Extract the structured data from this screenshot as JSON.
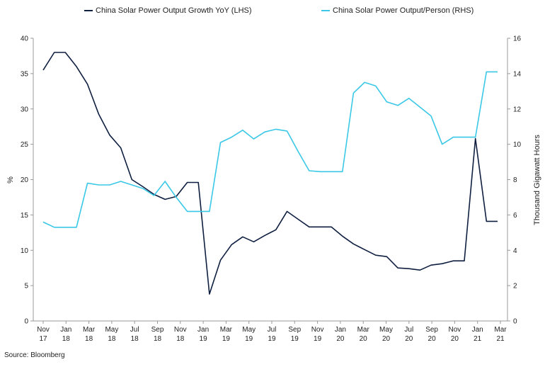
{
  "source": "Source: Bloomberg",
  "colors": {
    "lhs": "#0f1f40",
    "rhs": "#3ac8e6",
    "axis": "#999999"
  },
  "chart_data": {
    "type": "line",
    "grid": false,
    "legend_position": "top",
    "xlabel": "",
    "ylabel_left": "%",
    "ylabel_right": "Thousand Gigawatt Hours",
    "ylim_left": [
      0,
      40
    ],
    "ylim_right": [
      0,
      16
    ],
    "yticks_left": [
      "0",
      "5",
      "10",
      "15",
      "20",
      "25",
      "30",
      "35",
      "40"
    ],
    "yticks_right": [
      "0",
      "2",
      "4",
      "6",
      "8",
      "10",
      "12",
      "14",
      "16"
    ],
    "x": [
      "Nov 17",
      "Dec 17",
      "Jan 18",
      "Feb 18",
      "Mar 18",
      "Apr 18",
      "May 18",
      "Jun 18",
      "Jul 18",
      "Aug 18",
      "Sep 18",
      "Oct 18",
      "Nov 18",
      "Dec 18",
      "Jan 19",
      "Feb 19",
      "Mar 19",
      "Apr 19",
      "May 19",
      "Jun 19",
      "Jul 19",
      "Aug 19",
      "Sep 19",
      "Oct 19",
      "Nov 19",
      "Dec 19",
      "Jan 20",
      "Feb 20",
      "Mar 20",
      "Apr 20",
      "May 20",
      "Jun 20",
      "Jul 20",
      "Aug 20",
      "Sep 20",
      "Oct 20",
      "Nov 20",
      "Dec 20",
      "Jan 21",
      "Feb 21",
      "Mar 21",
      "Apr 21"
    ],
    "x_tick_labels": [
      {
        "top": "Nov",
        "bottom": "17"
      },
      {
        "top": "Jan",
        "bottom": "18"
      },
      {
        "top": "Mar",
        "bottom": "18"
      },
      {
        "top": "May",
        "bottom": "18"
      },
      {
        "top": "Jul",
        "bottom": "18"
      },
      {
        "top": "Sep",
        "bottom": "18"
      },
      {
        "top": "Nov",
        "bottom": "18"
      },
      {
        "top": "Jan",
        "bottom": "19"
      },
      {
        "top": "Mar",
        "bottom": "19"
      },
      {
        "top": "May",
        "bottom": "19"
      },
      {
        "top": "Jul",
        "bottom": "19"
      },
      {
        "top": "Sep",
        "bottom": "19"
      },
      {
        "top": "Nov",
        "bottom": "19"
      },
      {
        "top": "Jan",
        "bottom": "20"
      },
      {
        "top": "Mar",
        "bottom": "20"
      },
      {
        "top": "May",
        "bottom": "20"
      },
      {
        "top": "Jul",
        "bottom": "20"
      },
      {
        "top": "Sep",
        "bottom": "20"
      },
      {
        "top": "Nov",
        "bottom": "20"
      },
      {
        "top": "Jan",
        "bottom": "21"
      },
      {
        "top": "Mar",
        "bottom": "21"
      }
    ],
    "series": [
      {
        "name": "China Solar Power Output Growth YoY (LHS)",
        "axis": "left",
        "values": [
          35.5,
          38.0,
          38.0,
          36.0,
          33.5,
          29.3,
          26.3,
          24.5,
          20.0,
          19.0,
          17.9,
          17.2,
          17.6,
          19.6,
          19.6,
          3.8,
          8.6,
          10.8,
          11.9,
          11.2,
          12.1,
          12.9,
          15.5,
          14.4,
          13.3,
          13.3,
          13.3,
          12.0,
          10.9,
          10.1,
          9.3,
          9.1,
          7.5,
          7.4,
          7.2,
          7.9,
          8.1,
          8.5,
          8.5,
          25.8,
          14.1,
          14.1
        ]
      },
      {
        "name": "China Solar Power Output/Person (RHS)",
        "axis": "right",
        "values": [
          5.6,
          5.3,
          5.3,
          5.3,
          7.8,
          7.7,
          7.7,
          7.9,
          7.7,
          7.5,
          7.1,
          7.9,
          7.0,
          6.2,
          6.2,
          6.2,
          10.1,
          10.4,
          10.8,
          10.3,
          10.7,
          10.85,
          10.75,
          9.6,
          8.5,
          8.45,
          8.45,
          8.45,
          12.9,
          13.5,
          13.3,
          12.4,
          12.2,
          12.6,
          12.1,
          11.6,
          10.0,
          10.4,
          10.4,
          10.4,
          14.1,
          14.1
        ]
      }
    ]
  }
}
